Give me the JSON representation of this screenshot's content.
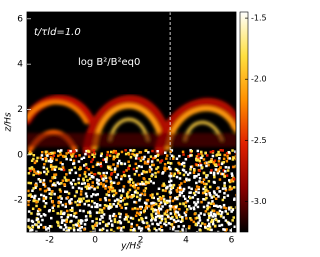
{
  "chart_data": {
    "type": "heatmap",
    "annotation_time": "t/τld=1.0",
    "annotation_quantity": "log B²/B²eq0",
    "xlabel": "y/Hs",
    "ylabel": "z/Hs",
    "xlim": [
      -3,
      6.2
    ],
    "ylim": [
      -3.4,
      6.3
    ],
    "xticks": [
      -2,
      0,
      2,
      4,
      6
    ],
    "yticks": [
      -2,
      0,
      2,
      4,
      6
    ],
    "colorbar_lim": [
      -3.25,
      -1.45
    ],
    "colorbar_ticks": [
      -1.5,
      {
        "value": -2,
        "label": "-2.0"
      },
      -2.5,
      {
        "value": -3,
        "label": "-3.0"
      }
    ],
    "colormap": [
      "#000000",
      "#8a0000",
      "#e02000",
      "#ff9000",
      "#ffe040",
      "#ffffff"
    ],
    "dashed_line_x": 3.3
  }
}
